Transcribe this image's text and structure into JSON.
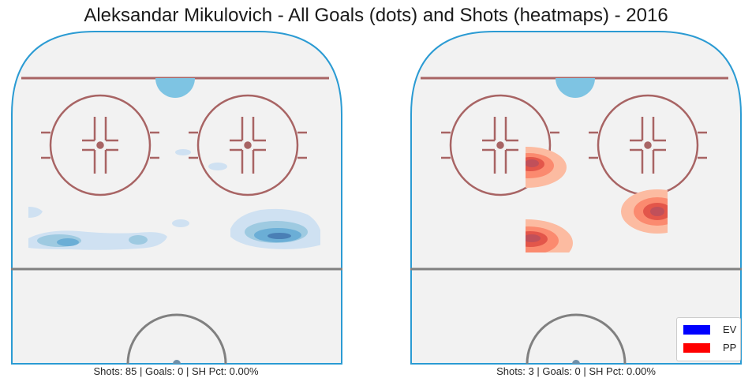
{
  "chart_data": {
    "type": "heatmap",
    "title": "Aleksandar Mikulovich - All Goals (dots) and Shots (heatmaps) - 2016",
    "legend": {
      "placement": "bottom-right",
      "entries": [
        {
          "label": "EV",
          "color": "#0000ff"
        },
        {
          "label": "PP",
          "color": "#ff0000"
        }
      ]
    },
    "panels": [
      {
        "strength": "EV",
        "caption": "Shots: 85 | Goals: 0 | SH Pct: 0.00%",
        "shots": 85,
        "goals": 0,
        "sh_pct": "0.00%",
        "colormap": "Blues"
      },
      {
        "strength": "PP",
        "caption": "Shots: 3 | Goals: 0 | SH Pct: 0.00%",
        "shots": 3,
        "goals": 0,
        "sh_pct": "0.00%",
        "colormap": "Reds"
      }
    ]
  }
}
